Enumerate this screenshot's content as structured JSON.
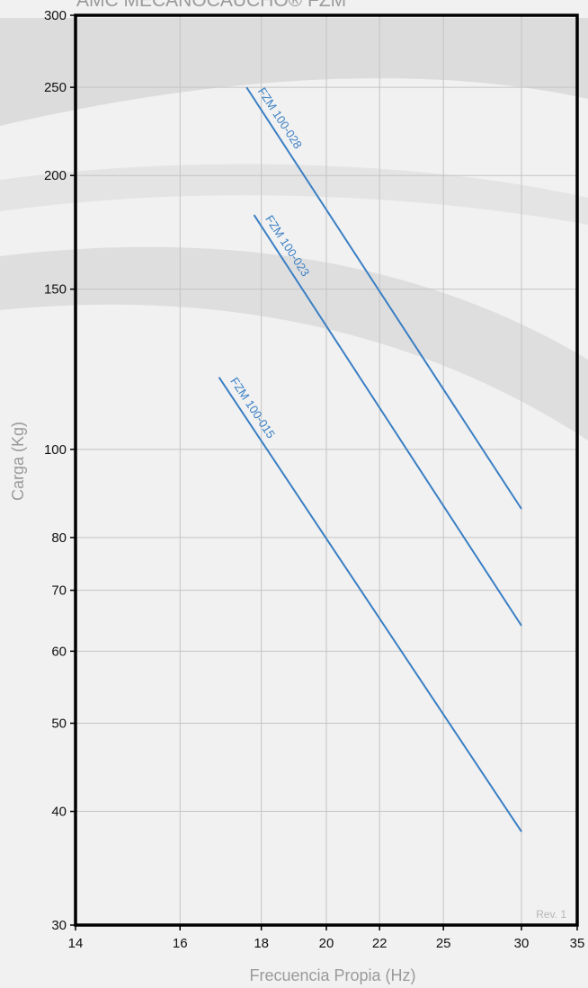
{
  "chart_data": {
    "type": "line",
    "title": "AMC MECANOCAUCHO® FZM",
    "xlabel": "Frecuencia Propia (Hz)",
    "ylabel": "Carga (Kg)",
    "x_scale": "reciprocal",
    "y_scale": "log",
    "xlim": [
      14,
      35
    ],
    "ylim": [
      30,
      300
    ],
    "x_ticks": [
      14,
      16,
      18,
      20,
      22,
      25,
      30,
      35
    ],
    "y_ticks": [
      30,
      40,
      50,
      60,
      70,
      80,
      100,
      150,
      200,
      250,
      300
    ],
    "grid": true,
    "series": [
      {
        "name": "FZM 100-028",
        "x": [
          17.6,
          30
        ],
        "y": [
          250,
          86
        ]
      },
      {
        "name": "FZM 100-023",
        "x": [
          17.8,
          30
        ],
        "y": [
          181,
          64
        ]
      },
      {
        "name": "FZM 100-015",
        "x": [
          16.9,
          30
        ],
        "y": [
          120,
          38
        ]
      }
    ],
    "annotation": "Rev. 1"
  },
  "colors": {
    "line": "#3a7fc4",
    "frame": "#000000",
    "grid": "#c4c4c4",
    "background": "#f1f1f1",
    "swoosh": "#dedede"
  }
}
